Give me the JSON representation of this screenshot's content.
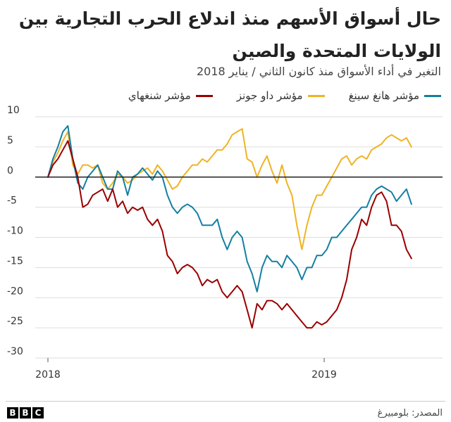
{
  "header": {
    "title": "حال أسواق الأسهم منذ اندلاع الحرب التجارية بين الولايات المتحدة والصين",
    "subtitle": "التغير في أداء الأسواق منذ كانون الثاني / يناير 2018"
  },
  "footer": {
    "brand": "BBC",
    "source": "المصدر: بلومبيرغ"
  },
  "chart_data": {
    "type": "line",
    "title": "حال أسواق الأسهم منذ اندلاع الحرب التجارية بين الولايات المتحدة والصين",
    "subtitle": "التغير في أداء الأسواق منذ كانون الثاني / يناير 2018",
    "xlabel": "",
    "ylabel": "",
    "x_ticks": [
      "2018",
      "2019"
    ],
    "x_range": [
      "2018-01-01",
      "2019-06-10"
    ],
    "ylim": [
      -30,
      10
    ],
    "y_ticks": [
      10,
      5,
      0,
      -5,
      -10,
      -15,
      -20,
      -25,
      -30
    ],
    "grid": "horizontal",
    "legend_position": "top",
    "series": [
      {
        "name": "مؤشر شنغهاي",
        "color": "#990000",
        "points": [
          [
            "2018-01-01",
            0
          ],
          [
            "2018-01-08",
            2
          ],
          [
            "2018-01-15",
            3
          ],
          [
            "2018-01-22",
            4.5
          ],
          [
            "2018-01-29",
            6
          ],
          [
            "2018-02-05",
            3
          ],
          [
            "2018-02-12",
            0
          ],
          [
            "2018-02-19",
            -5
          ],
          [
            "2018-02-26",
            -4.5
          ],
          [
            "2018-03-05",
            -3
          ],
          [
            "2018-03-12",
            -2.5
          ],
          [
            "2018-03-19",
            -2
          ],
          [
            "2018-03-26",
            -4
          ],
          [
            "2018-04-02",
            -2
          ],
          [
            "2018-04-09",
            -5
          ],
          [
            "2018-04-16",
            -4
          ],
          [
            "2018-04-23",
            -6
          ],
          [
            "2018-04-30",
            -5
          ],
          [
            "2018-05-07",
            -5.5
          ],
          [
            "2018-05-14",
            -5
          ],
          [
            "2018-05-21",
            -7
          ],
          [
            "2018-05-28",
            -8
          ],
          [
            "2018-06-04",
            -7
          ],
          [
            "2018-06-11",
            -9
          ],
          [
            "2018-06-18",
            -13
          ],
          [
            "2018-06-25",
            -14
          ],
          [
            "2018-07-02",
            -16
          ],
          [
            "2018-07-09",
            -15
          ],
          [
            "2018-07-16",
            -14.5
          ],
          [
            "2018-07-23",
            -15
          ],
          [
            "2018-07-30",
            -16
          ],
          [
            "2018-08-06",
            -18
          ],
          [
            "2018-08-13",
            -17
          ],
          [
            "2018-08-20",
            -17.5
          ],
          [
            "2018-08-27",
            -17
          ],
          [
            "2018-09-03",
            -19
          ],
          [
            "2018-09-10",
            -20
          ],
          [
            "2018-09-17",
            -19
          ],
          [
            "2018-09-24",
            -18
          ],
          [
            "2018-10-01",
            -19
          ],
          [
            "2018-10-08",
            -22
          ],
          [
            "2018-10-15",
            -25
          ],
          [
            "2018-10-22",
            -21
          ],
          [
            "2018-10-29",
            -22
          ],
          [
            "2018-11-05",
            -20.5
          ],
          [
            "2018-11-12",
            -20.5
          ],
          [
            "2018-11-19",
            -21
          ],
          [
            "2018-11-26",
            -22
          ],
          [
            "2018-12-03",
            -21
          ],
          [
            "2018-12-10",
            -22
          ],
          [
            "2018-12-17",
            -23
          ],
          [
            "2018-12-24",
            -24
          ],
          [
            "2018-12-31",
            -25
          ],
          [
            "2019-01-07",
            -25
          ],
          [
            "2019-01-14",
            -24
          ],
          [
            "2019-01-21",
            -24.5
          ],
          [
            "2019-01-28",
            -24
          ],
          [
            "2019-02-04",
            -23
          ],
          [
            "2019-02-11",
            -22
          ],
          [
            "2019-02-18",
            -20
          ],
          [
            "2019-02-25",
            -17
          ],
          [
            "2019-03-04",
            -12
          ],
          [
            "2019-03-11",
            -10
          ],
          [
            "2019-03-18",
            -7
          ],
          [
            "2019-03-25",
            -8
          ],
          [
            "2019-04-01",
            -5
          ],
          [
            "2019-04-08",
            -3
          ],
          [
            "2019-04-15",
            -2.5
          ],
          [
            "2019-04-22",
            -4
          ],
          [
            "2019-04-29",
            -8
          ],
          [
            "2019-05-06",
            -8
          ],
          [
            "2019-05-13",
            -9
          ],
          [
            "2019-05-20",
            -12
          ],
          [
            "2019-05-27",
            -13.5
          ]
        ]
      },
      {
        "name": "مؤشر داو جونز",
        "color": "#f0b323",
        "points": [
          [
            "2018-01-01",
            0
          ],
          [
            "2018-01-08",
            2.5
          ],
          [
            "2018-01-15",
            4
          ],
          [
            "2018-01-22",
            6
          ],
          [
            "2018-01-29",
            7.5
          ],
          [
            "2018-02-05",
            2
          ],
          [
            "2018-02-12",
            0.5
          ],
          [
            "2018-02-19",
            2
          ],
          [
            "2018-02-26",
            2
          ],
          [
            "2018-03-05",
            1.5
          ],
          [
            "2018-03-12",
            2
          ],
          [
            "2018-03-19",
            -1
          ],
          [
            "2018-03-26",
            -2
          ],
          [
            "2018-04-02",
            -1
          ],
          [
            "2018-04-09",
            0.5
          ],
          [
            "2018-04-16",
            0
          ],
          [
            "2018-04-23",
            -1
          ],
          [
            "2018-04-30",
            -0.5
          ],
          [
            "2018-05-07",
            0.5
          ],
          [
            "2018-05-14",
            1
          ],
          [
            "2018-05-21",
            1.5
          ],
          [
            "2018-05-28",
            0.5
          ],
          [
            "2018-06-04",
            2
          ],
          [
            "2018-06-11",
            1
          ],
          [
            "2018-06-18",
            -0.5
          ],
          [
            "2018-06-25",
            -2
          ],
          [
            "2018-07-02",
            -1.5
          ],
          [
            "2018-07-09",
            0
          ],
          [
            "2018-07-16",
            1
          ],
          [
            "2018-07-23",
            2
          ],
          [
            "2018-07-30",
            2
          ],
          [
            "2018-08-06",
            3
          ],
          [
            "2018-08-13",
            2.5
          ],
          [
            "2018-08-20",
            3.5
          ],
          [
            "2018-08-27",
            4.5
          ],
          [
            "2018-09-03",
            4.5
          ],
          [
            "2018-09-10",
            5.5
          ],
          [
            "2018-09-17",
            7
          ],
          [
            "2018-09-24",
            7.5
          ],
          [
            "2018-10-01",
            8
          ],
          [
            "2018-10-08",
            3
          ],
          [
            "2018-10-15",
            2.5
          ],
          [
            "2018-10-22",
            0
          ],
          [
            "2018-10-29",
            2
          ],
          [
            "2018-11-05",
            3.5
          ],
          [
            "2018-11-12",
            1
          ],
          [
            "2018-11-19",
            -1
          ],
          [
            "2018-11-26",
            2
          ],
          [
            "2018-12-03",
            -1
          ],
          [
            "2018-12-10",
            -3
          ],
          [
            "2018-12-17",
            -8
          ],
          [
            "2018-12-24",
            -12
          ],
          [
            "2018-12-31",
            -8
          ],
          [
            "2019-01-07",
            -5
          ],
          [
            "2019-01-14",
            -3
          ],
          [
            "2019-01-21",
            -3
          ],
          [
            "2019-01-28",
            -1.5
          ],
          [
            "2019-02-04",
            0
          ],
          [
            "2019-02-11",
            1.5
          ],
          [
            "2019-02-18",
            3
          ],
          [
            "2019-02-25",
            3.5
          ],
          [
            "2019-03-04",
            2
          ],
          [
            "2019-03-11",
            3
          ],
          [
            "2019-03-18",
            3.5
          ],
          [
            "2019-03-25",
            3
          ],
          [
            "2019-04-01",
            4.5
          ],
          [
            "2019-04-08",
            5
          ],
          [
            "2019-04-15",
            5.5
          ],
          [
            "2019-04-22",
            6.5
          ],
          [
            "2019-04-29",
            7
          ],
          [
            "2019-05-06",
            6.5
          ],
          [
            "2019-05-13",
            6
          ],
          [
            "2019-05-20",
            6.5
          ],
          [
            "2019-05-27",
            5
          ]
        ]
      },
      {
        "name": "مؤشر هانغ سينغ",
        "color": "#1380a1",
        "points": [
          [
            "2018-01-01",
            0
          ],
          [
            "2018-01-08",
            3
          ],
          [
            "2018-01-15",
            5
          ],
          [
            "2018-01-22",
            7.5
          ],
          [
            "2018-01-29",
            8.5
          ],
          [
            "2018-02-05",
            3
          ],
          [
            "2018-02-12",
            -1
          ],
          [
            "2018-02-19",
            -2
          ],
          [
            "2018-02-26",
            0
          ],
          [
            "2018-03-05",
            1
          ],
          [
            "2018-03-12",
            2
          ],
          [
            "2018-03-19",
            0
          ],
          [
            "2018-03-26",
            -2
          ],
          [
            "2018-04-02",
            -2
          ],
          [
            "2018-04-09",
            1
          ],
          [
            "2018-04-16",
            0
          ],
          [
            "2018-04-23",
            -3
          ],
          [
            "2018-04-30",
            0
          ],
          [
            "2018-05-07",
            0.5
          ],
          [
            "2018-05-14",
            1.5
          ],
          [
            "2018-05-21",
            0.5
          ],
          [
            "2018-05-28",
            -0.5
          ],
          [
            "2018-06-04",
            1
          ],
          [
            "2018-06-11",
            0
          ],
          [
            "2018-06-18",
            -3
          ],
          [
            "2018-06-25",
            -5
          ],
          [
            "2018-07-02",
            -6
          ],
          [
            "2018-07-09",
            -5
          ],
          [
            "2018-07-16",
            -4.5
          ],
          [
            "2018-07-23",
            -5
          ],
          [
            "2018-07-30",
            -6
          ],
          [
            "2018-08-06",
            -8
          ],
          [
            "2018-08-13",
            -8
          ],
          [
            "2018-08-20",
            -8
          ],
          [
            "2018-08-27",
            -7
          ],
          [
            "2018-09-03",
            -10
          ],
          [
            "2018-09-10",
            -12
          ],
          [
            "2018-09-17",
            -10
          ],
          [
            "2018-09-24",
            -9
          ],
          [
            "2018-10-01",
            -10
          ],
          [
            "2018-10-08",
            -14
          ],
          [
            "2018-10-15",
            -16
          ],
          [
            "2018-10-22",
            -19
          ],
          [
            "2018-10-29",
            -15
          ],
          [
            "2018-11-05",
            -13
          ],
          [
            "2018-11-12",
            -14
          ],
          [
            "2018-11-19",
            -14
          ],
          [
            "2018-11-26",
            -15
          ],
          [
            "2018-12-03",
            -13
          ],
          [
            "2018-12-10",
            -14
          ],
          [
            "2018-12-17",
            -15
          ],
          [
            "2018-12-24",
            -17
          ],
          [
            "2018-12-31",
            -15
          ],
          [
            "2019-01-07",
            -15
          ],
          [
            "2019-01-14",
            -13
          ],
          [
            "2019-01-21",
            -13
          ],
          [
            "2019-01-28",
            -12
          ],
          [
            "2019-02-04",
            -10
          ],
          [
            "2019-02-11",
            -10
          ],
          [
            "2019-02-18",
            -9
          ],
          [
            "2019-02-25",
            -8
          ],
          [
            "2019-03-04",
            -7
          ],
          [
            "2019-03-11",
            -6
          ],
          [
            "2019-03-18",
            -5
          ],
          [
            "2019-03-25",
            -5
          ],
          [
            "2019-04-01",
            -3
          ],
          [
            "2019-04-08",
            -2
          ],
          [
            "2019-04-15",
            -1.5
          ],
          [
            "2019-04-22",
            -2
          ],
          [
            "2019-04-29",
            -2.5
          ],
          [
            "2019-05-06",
            -4
          ],
          [
            "2019-05-13",
            -3
          ],
          [
            "2019-05-20",
            -2
          ],
          [
            "2019-05-27",
            -4.5
          ]
        ]
      }
    ]
  }
}
